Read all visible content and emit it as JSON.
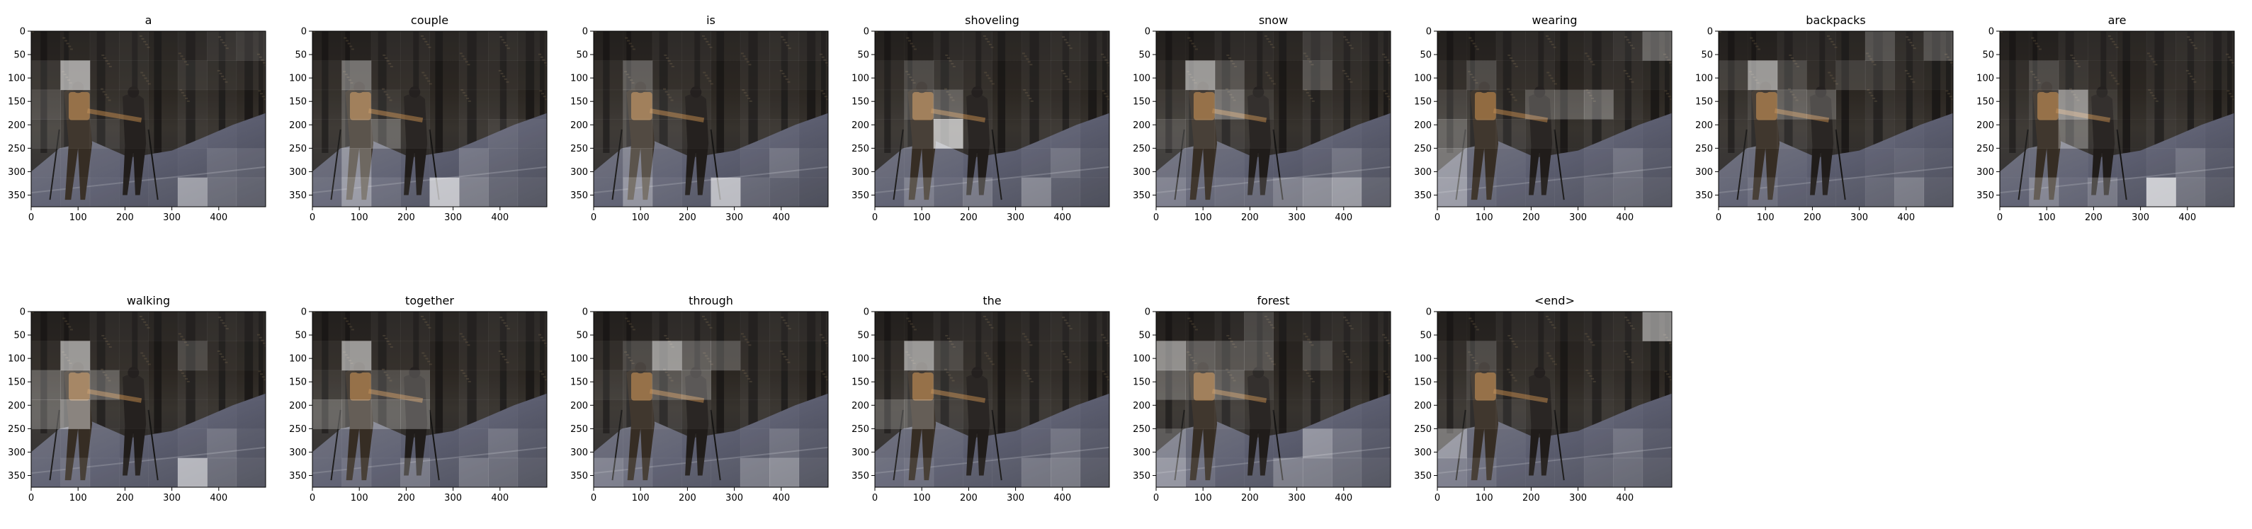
{
  "figure": {
    "background": "#ffffff"
  },
  "chart_data": {
    "type": "heatmap",
    "description_visible": false,
    "image_extent": {
      "x": [
        0,
        500
      ],
      "y": [
        375,
        0
      ]
    },
    "x_ticks": [
      0,
      100,
      200,
      300,
      400
    ],
    "y_ticks": [
      0,
      50,
      100,
      150,
      200,
      250,
      300,
      350
    ],
    "attention_grid": {
      "rows": 6,
      "cols": 8,
      "cell_width": 62.5,
      "cell_height": 62.5
    },
    "panels": [
      {
        "word": "a",
        "attention": [
          [
            0.05,
            0.08,
            0.1,
            0.12,
            0.08,
            0.1,
            0.15,
            0.2
          ],
          [
            0.15,
            0.7,
            0.1,
            0.12,
            0.08,
            0.15,
            0.12,
            0.1
          ],
          [
            0.25,
            0.2,
            0.1,
            0.1,
            0.05,
            0.1,
            0.08,
            0.05
          ],
          [
            0.2,
            0.15,
            0.15,
            0.08,
            0.05,
            0.1,
            0.08,
            0.05
          ],
          [
            0.1,
            0.1,
            0.08,
            0.05,
            0.05,
            0.08,
            0.2,
            0.15
          ],
          [
            0.1,
            0.12,
            0.1,
            0.08,
            0.1,
            0.55,
            0.25,
            0.2
          ]
        ]
      },
      {
        "word": "couple",
        "attention": [
          [
            0.05,
            0.05,
            0.1,
            0.1,
            0.08,
            0.1,
            0.12,
            0.1
          ],
          [
            0.1,
            0.45,
            0.1,
            0.1,
            0.05,
            0.1,
            0.1,
            0.08
          ],
          [
            0.1,
            0.3,
            0.15,
            0.1,
            0.05,
            0.1,
            0.1,
            0.05
          ],
          [
            0.1,
            0.3,
            0.35,
            0.1,
            0.05,
            0.1,
            0.15,
            0.1
          ],
          [
            0.1,
            0.4,
            0.1,
            0.05,
            0.05,
            0.25,
            0.15,
            0.1
          ],
          [
            0.15,
            0.5,
            0.2,
            0.1,
            0.8,
            0.35,
            0.2,
            0.15
          ]
        ]
      },
      {
        "word": "is",
        "attention": [
          [
            0.05,
            0.05,
            0.1,
            0.1,
            0.08,
            0.1,
            0.12,
            0.1
          ],
          [
            0.1,
            0.35,
            0.1,
            0.1,
            0.05,
            0.1,
            0.1,
            0.08
          ],
          [
            0.1,
            0.3,
            0.15,
            0.1,
            0.05,
            0.1,
            0.08,
            0.05
          ],
          [
            0.1,
            0.25,
            0.15,
            0.08,
            0.05,
            0.1,
            0.1,
            0.05
          ],
          [
            0.1,
            0.3,
            0.1,
            0.05,
            0.05,
            0.1,
            0.25,
            0.1
          ],
          [
            0.1,
            0.45,
            0.15,
            0.1,
            0.75,
            0.2,
            0.15,
            0.1
          ]
        ]
      },
      {
        "word": "shoveling",
        "attention": [
          [
            0.05,
            0.05,
            0.1,
            0.1,
            0.08,
            0.1,
            0.12,
            0.1
          ],
          [
            0.1,
            0.25,
            0.15,
            0.1,
            0.05,
            0.1,
            0.1,
            0.08
          ],
          [
            0.1,
            0.3,
            0.35,
            0.1,
            0.05,
            0.1,
            0.08,
            0.05
          ],
          [
            0.1,
            0.2,
            0.8,
            0.1,
            0.05,
            0.1,
            0.1,
            0.05
          ],
          [
            0.1,
            0.1,
            0.1,
            0.05,
            0.05,
            0.1,
            0.25,
            0.1
          ],
          [
            0.1,
            0.3,
            0.15,
            0.3,
            0.1,
            0.4,
            0.15,
            0.1
          ]
        ]
      },
      {
        "word": "snow",
        "attention": [
          [
            0.05,
            0.05,
            0.1,
            0.1,
            0.08,
            0.2,
            0.12,
            0.1
          ],
          [
            0.1,
            0.65,
            0.3,
            0.1,
            0.05,
            0.3,
            0.1,
            0.08
          ],
          [
            0.15,
            0.2,
            0.45,
            0.15,
            0.05,
            0.1,
            0.08,
            0.05
          ],
          [
            0.25,
            0.2,
            0.15,
            0.1,
            0.05,
            0.1,
            0.08,
            0.05
          ],
          [
            0.15,
            0.1,
            0.1,
            0.05,
            0.05,
            0.1,
            0.25,
            0.1
          ],
          [
            0.3,
            0.15,
            0.2,
            0.2,
            0.35,
            0.45,
            0.55,
            0.2
          ]
        ]
      },
      {
        "word": "wearing",
        "attention": [
          [
            0.05,
            0.05,
            0.1,
            0.1,
            0.08,
            0.1,
            0.15,
            0.4
          ],
          [
            0.1,
            0.25,
            0.1,
            0.1,
            0.05,
            0.1,
            0.1,
            0.08
          ],
          [
            0.2,
            0.15,
            0.1,
            0.3,
            0.3,
            0.4,
            0.1,
            0.05
          ],
          [
            0.35,
            0.15,
            0.15,
            0.1,
            0.05,
            0.1,
            0.08,
            0.05
          ],
          [
            0.45,
            0.1,
            0.1,
            0.05,
            0.05,
            0.1,
            0.25,
            0.1
          ],
          [
            0.5,
            0.15,
            0.1,
            0.1,
            0.1,
            0.2,
            0.25,
            0.15
          ]
        ]
      },
      {
        "word": "backpacks",
        "attention": [
          [
            0.05,
            0.05,
            0.1,
            0.1,
            0.08,
            0.3,
            0.12,
            0.3
          ],
          [
            0.2,
            0.65,
            0.25,
            0.1,
            0.2,
            0.2,
            0.1,
            0.08
          ],
          [
            0.1,
            0.2,
            0.35,
            0.3,
            0.05,
            0.1,
            0.08,
            0.05
          ],
          [
            0.1,
            0.15,
            0.15,
            0.1,
            0.05,
            0.1,
            0.08,
            0.05
          ],
          [
            0.1,
            0.1,
            0.1,
            0.05,
            0.05,
            0.1,
            0.15,
            0.1
          ],
          [
            0.1,
            0.2,
            0.1,
            0.1,
            0.1,
            0.2,
            0.35,
            0.15
          ]
        ]
      },
      {
        "word": "are",
        "attention": [
          [
            0.05,
            0.05,
            0.1,
            0.1,
            0.08,
            0.1,
            0.12,
            0.1
          ],
          [
            0.1,
            0.25,
            0.15,
            0.1,
            0.05,
            0.1,
            0.1,
            0.08
          ],
          [
            0.1,
            0.2,
            0.6,
            0.15,
            0.05,
            0.1,
            0.08,
            0.05
          ],
          [
            0.1,
            0.15,
            0.4,
            0.1,
            0.05,
            0.1,
            0.08,
            0.05
          ],
          [
            0.1,
            0.1,
            0.1,
            0.05,
            0.05,
            0.1,
            0.25,
            0.1
          ],
          [
            0.1,
            0.35,
            0.15,
            0.3,
            0.1,
            0.85,
            0.3,
            0.15
          ]
        ]
      },
      {
        "word": "walking",
        "attention": [
          [
            0.05,
            0.05,
            0.1,
            0.1,
            0.08,
            0.1,
            0.12,
            0.1
          ],
          [
            0.1,
            0.65,
            0.1,
            0.1,
            0.05,
            0.25,
            0.1,
            0.08
          ],
          [
            0.35,
            0.35,
            0.35,
            0.1,
            0.05,
            0.1,
            0.08,
            0.05
          ],
          [
            0.35,
            0.55,
            0.1,
            0.08,
            0.05,
            0.1,
            0.08,
            0.05
          ],
          [
            0.1,
            0.1,
            0.1,
            0.05,
            0.05,
            0.1,
            0.25,
            0.1
          ],
          [
            0.1,
            0.2,
            0.1,
            0.1,
            0.1,
            0.7,
            0.25,
            0.15
          ]
        ]
      },
      {
        "word": "together",
        "attention": [
          [
            0.05,
            0.05,
            0.1,
            0.1,
            0.08,
            0.1,
            0.12,
            0.1
          ],
          [
            0.1,
            0.65,
            0.1,
            0.1,
            0.05,
            0.1,
            0.1,
            0.08
          ],
          [
            0.15,
            0.2,
            0.25,
            0.3,
            0.05,
            0.1,
            0.08,
            0.05
          ],
          [
            0.35,
            0.35,
            0.35,
            0.35,
            0.05,
            0.1,
            0.08,
            0.05
          ],
          [
            0.1,
            0.1,
            0.1,
            0.05,
            0.05,
            0.1,
            0.25,
            0.1
          ],
          [
            0.1,
            0.2,
            0.1,
            0.3,
            0.1,
            0.3,
            0.25,
            0.15
          ]
        ]
      },
      {
        "word": "through",
        "attention": [
          [
            0.05,
            0.05,
            0.1,
            0.1,
            0.08,
            0.1,
            0.12,
            0.1
          ],
          [
            0.1,
            0.25,
            0.65,
            0.35,
            0.3,
            0.1,
            0.1,
            0.08
          ],
          [
            0.15,
            0.2,
            0.3,
            0.35,
            0.05,
            0.1,
            0.08,
            0.05
          ],
          [
            0.1,
            0.15,
            0.15,
            0.1,
            0.05,
            0.1,
            0.08,
            0.05
          ],
          [
            0.1,
            0.1,
            0.1,
            0.05,
            0.05,
            0.1,
            0.25,
            0.1
          ],
          [
            0.3,
            0.2,
            0.1,
            0.1,
            0.1,
            0.35,
            0.45,
            0.15
          ]
        ]
      },
      {
        "word": "the",
        "attention": [
          [
            0.05,
            0.05,
            0.1,
            0.1,
            0.08,
            0.1,
            0.12,
            0.1
          ],
          [
            0.1,
            0.65,
            0.25,
            0.1,
            0.05,
            0.1,
            0.1,
            0.08
          ],
          [
            0.1,
            0.2,
            0.15,
            0.1,
            0.05,
            0.1,
            0.08,
            0.05
          ],
          [
            0.3,
            0.35,
            0.15,
            0.1,
            0.05,
            0.1,
            0.08,
            0.05
          ],
          [
            0.1,
            0.1,
            0.1,
            0.05,
            0.05,
            0.1,
            0.25,
            0.1
          ],
          [
            0.15,
            0.2,
            0.1,
            0.1,
            0.1,
            0.3,
            0.35,
            0.15
          ]
        ]
      },
      {
        "word": "forest",
        "attention": [
          [
            0.05,
            0.05,
            0.1,
            0.25,
            0.08,
            0.1,
            0.12,
            0.1
          ],
          [
            0.6,
            0.35,
            0.3,
            0.3,
            0.05,
            0.25,
            0.1,
            0.08
          ],
          [
            0.35,
            0.3,
            0.35,
            0.15,
            0.05,
            0.1,
            0.08,
            0.05
          ],
          [
            0.1,
            0.15,
            0.15,
            0.1,
            0.05,
            0.1,
            0.08,
            0.05
          ],
          [
            0.3,
            0.1,
            0.1,
            0.05,
            0.05,
            0.45,
            0.25,
            0.1
          ],
          [
            0.45,
            0.2,
            0.1,
            0.1,
            0.35,
            0.35,
            0.25,
            0.15
          ]
        ]
      },
      {
        "word": "<end>",
        "attention": [
          [
            0.05,
            0.05,
            0.1,
            0.1,
            0.08,
            0.1,
            0.12,
            0.6
          ],
          [
            0.1,
            0.25,
            0.1,
            0.1,
            0.05,
            0.1,
            0.1,
            0.08
          ],
          [
            0.1,
            0.2,
            0.1,
            0.1,
            0.05,
            0.1,
            0.08,
            0.05
          ],
          [
            0.1,
            0.15,
            0.15,
            0.1,
            0.05,
            0.1,
            0.08,
            0.05
          ],
          [
            0.45,
            0.1,
            0.1,
            0.05,
            0.05,
            0.1,
            0.25,
            0.1
          ],
          [
            0.3,
            0.2,
            0.1,
            0.1,
            0.1,
            0.2,
            0.25,
            0.15
          ]
        ]
      }
    ]
  }
}
